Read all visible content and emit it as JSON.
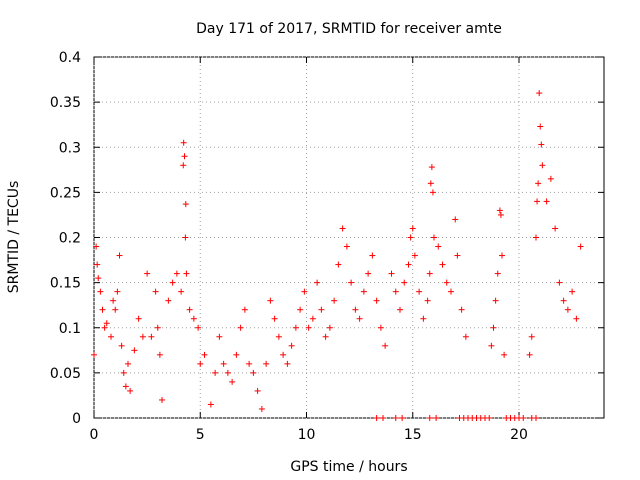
{
  "chart_data": {
    "type": "scatter",
    "title": "Day 171 of 2017, SRMTID for receiver amte",
    "xlabel": "GPS time / hours",
    "ylabel": "SRMTID / TECUs",
    "xlim": [
      0,
      24
    ],
    "ylim": [
      0,
      0.4
    ],
    "x_ticks": [
      0,
      5,
      10,
      15,
      20
    ],
    "x_tick_labels": [
      "0",
      "5",
      "10",
      "15",
      "20"
    ],
    "y_ticks": [
      0,
      0.05,
      0.1,
      0.15,
      0.2,
      0.25,
      0.3,
      0.35,
      0.4
    ],
    "y_tick_labels": [
      "0",
      "0.05",
      "0.1",
      "0.15",
      "0.2",
      "0.25",
      "0.3",
      "0.35",
      "0.4"
    ],
    "grid": true,
    "marker": "+",
    "marker_color": "#ff0000",
    "series": [
      {
        "name": "SRMTID",
        "points": [
          [
            0.0,
            0.07
          ],
          [
            0.1,
            0.19
          ],
          [
            0.15,
            0.17
          ],
          [
            0.2,
            0.155
          ],
          [
            0.3,
            0.14
          ],
          [
            0.4,
            0.12
          ],
          [
            0.5,
            0.1
          ],
          [
            0.6,
            0.105
          ],
          [
            0.8,
            0.09
          ],
          [
            0.9,
            0.13
          ],
          [
            1.0,
            0.12
          ],
          [
            1.1,
            0.14
          ],
          [
            1.2,
            0.18
          ],
          [
            1.3,
            0.08
          ],
          [
            1.4,
            0.05
          ],
          [
            1.5,
            0.035
          ],
          [
            1.6,
            0.06
          ],
          [
            1.7,
            0.03
          ],
          [
            1.9,
            0.075
          ],
          [
            2.1,
            0.11
          ],
          [
            2.3,
            0.09
          ],
          [
            2.5,
            0.16
          ],
          [
            2.7,
            0.09
          ],
          [
            2.9,
            0.14
          ],
          [
            3.0,
            0.1
          ],
          [
            3.1,
            0.07
          ],
          [
            3.2,
            0.02
          ],
          [
            3.5,
            0.13
          ],
          [
            3.7,
            0.15
          ],
          [
            3.9,
            0.16
          ],
          [
            4.1,
            0.14
          ],
          [
            4.2,
            0.28
          ],
          [
            4.22,
            0.305
          ],
          [
            4.26,
            0.29
          ],
          [
            4.3,
            0.2
          ],
          [
            4.32,
            0.237
          ],
          [
            4.35,
            0.16
          ],
          [
            4.5,
            0.12
          ],
          [
            4.7,
            0.11
          ],
          [
            4.9,
            0.1
          ],
          [
            5.0,
            0.06
          ],
          [
            5.2,
            0.07
          ],
          [
            5.5,
            0.015
          ],
          [
            5.7,
            0.05
          ],
          [
            5.9,
            0.09
          ],
          [
            6.1,
            0.06
          ],
          [
            6.3,
            0.05
          ],
          [
            6.5,
            0.04
          ],
          [
            6.7,
            0.07
          ],
          [
            6.9,
            0.1
          ],
          [
            7.1,
            0.12
          ],
          [
            7.3,
            0.06
          ],
          [
            7.5,
            0.05
          ],
          [
            7.7,
            0.03
          ],
          [
            7.9,
            0.01
          ],
          [
            8.1,
            0.06
          ],
          [
            8.3,
            0.13
          ],
          [
            8.5,
            0.11
          ],
          [
            8.7,
            0.09
          ],
          [
            8.9,
            0.07
          ],
          [
            9.1,
            0.06
          ],
          [
            9.3,
            0.08
          ],
          [
            9.5,
            0.1
          ],
          [
            9.7,
            0.12
          ],
          [
            9.9,
            0.14
          ],
          [
            10.1,
            0.1
          ],
          [
            10.3,
            0.11
          ],
          [
            10.5,
            0.15
          ],
          [
            10.7,
            0.12
          ],
          [
            10.9,
            0.09
          ],
          [
            11.1,
            0.1
          ],
          [
            11.3,
            0.13
          ],
          [
            11.5,
            0.17
          ],
          [
            11.7,
            0.21
          ],
          [
            11.9,
            0.19
          ],
          [
            12.1,
            0.15
          ],
          [
            12.3,
            0.12
          ],
          [
            12.5,
            0.11
          ],
          [
            12.7,
            0.14
          ],
          [
            12.9,
            0.16
          ],
          [
            13.1,
            0.18
          ],
          [
            13.3,
            0.13
          ],
          [
            13.5,
            0.1
          ],
          [
            13.7,
            0.08
          ],
          [
            14.0,
            0.16
          ],
          [
            14.2,
            0.14
          ],
          [
            14.4,
            0.12
          ],
          [
            14.6,
            0.15
          ],
          [
            14.8,
            0.17
          ],
          [
            14.9,
            0.2
          ],
          [
            15.0,
            0.21
          ],
          [
            15.1,
            0.18
          ],
          [
            15.3,
            0.14
          ],
          [
            15.5,
            0.11
          ],
          [
            15.7,
            0.13
          ],
          [
            15.8,
            0.16
          ],
          [
            15.85,
            0.26
          ],
          [
            15.9,
            0.278
          ],
          [
            15.95,
            0.25
          ],
          [
            16.0,
            0.2
          ],
          [
            16.2,
            0.19
          ],
          [
            16.4,
            0.17
          ],
          [
            16.6,
            0.15
          ],
          [
            16.8,
            0.14
          ],
          [
            17.0,
            0.22
          ],
          [
            17.1,
            0.18
          ],
          [
            17.3,
            0.12
          ],
          [
            17.5,
            0.09
          ],
          [
            18.7,
            0.08
          ],
          [
            18.8,
            0.1
          ],
          [
            18.9,
            0.13
          ],
          [
            19.0,
            0.16
          ],
          [
            19.1,
            0.23
          ],
          [
            19.15,
            0.225
          ],
          [
            19.2,
            0.18
          ],
          [
            19.3,
            0.07
          ],
          [
            20.5,
            0.07
          ],
          [
            20.6,
            0.09
          ],
          [
            20.8,
            0.2
          ],
          [
            20.85,
            0.24
          ],
          [
            20.9,
            0.26
          ],
          [
            20.95,
            0.36
          ],
          [
            21.0,
            0.323
          ],
          [
            21.05,
            0.303
          ],
          [
            21.1,
            0.28
          ],
          [
            21.3,
            0.24
          ],
          [
            21.5,
            0.265
          ],
          [
            21.7,
            0.21
          ],
          [
            21.9,
            0.15
          ],
          [
            22.1,
            0.13
          ],
          [
            22.3,
            0.12
          ],
          [
            22.5,
            0.14
          ],
          [
            22.7,
            0.11
          ],
          [
            22.9,
            0.19
          ],
          [
            13.3,
            0.0
          ],
          [
            13.6,
            0.0
          ],
          [
            14.2,
            0.0
          ],
          [
            14.5,
            0.0
          ],
          [
            15.8,
            0.0
          ],
          [
            16.1,
            0.0
          ],
          [
            17.2,
            0.0
          ],
          [
            17.4,
            0.0
          ],
          [
            17.6,
            0.0
          ],
          [
            17.8,
            0.0
          ],
          [
            18.0,
            0.0
          ],
          [
            18.2,
            0.0
          ],
          [
            18.4,
            0.0
          ],
          [
            18.6,
            0.0
          ],
          [
            19.4,
            0.0
          ],
          [
            19.6,
            0.0
          ],
          [
            19.8,
            0.0
          ],
          [
            20.0,
            0.0
          ],
          [
            20.2,
            0.0
          ],
          [
            20.6,
            0.0
          ],
          [
            20.8,
            0.0
          ]
        ]
      }
    ]
  }
}
